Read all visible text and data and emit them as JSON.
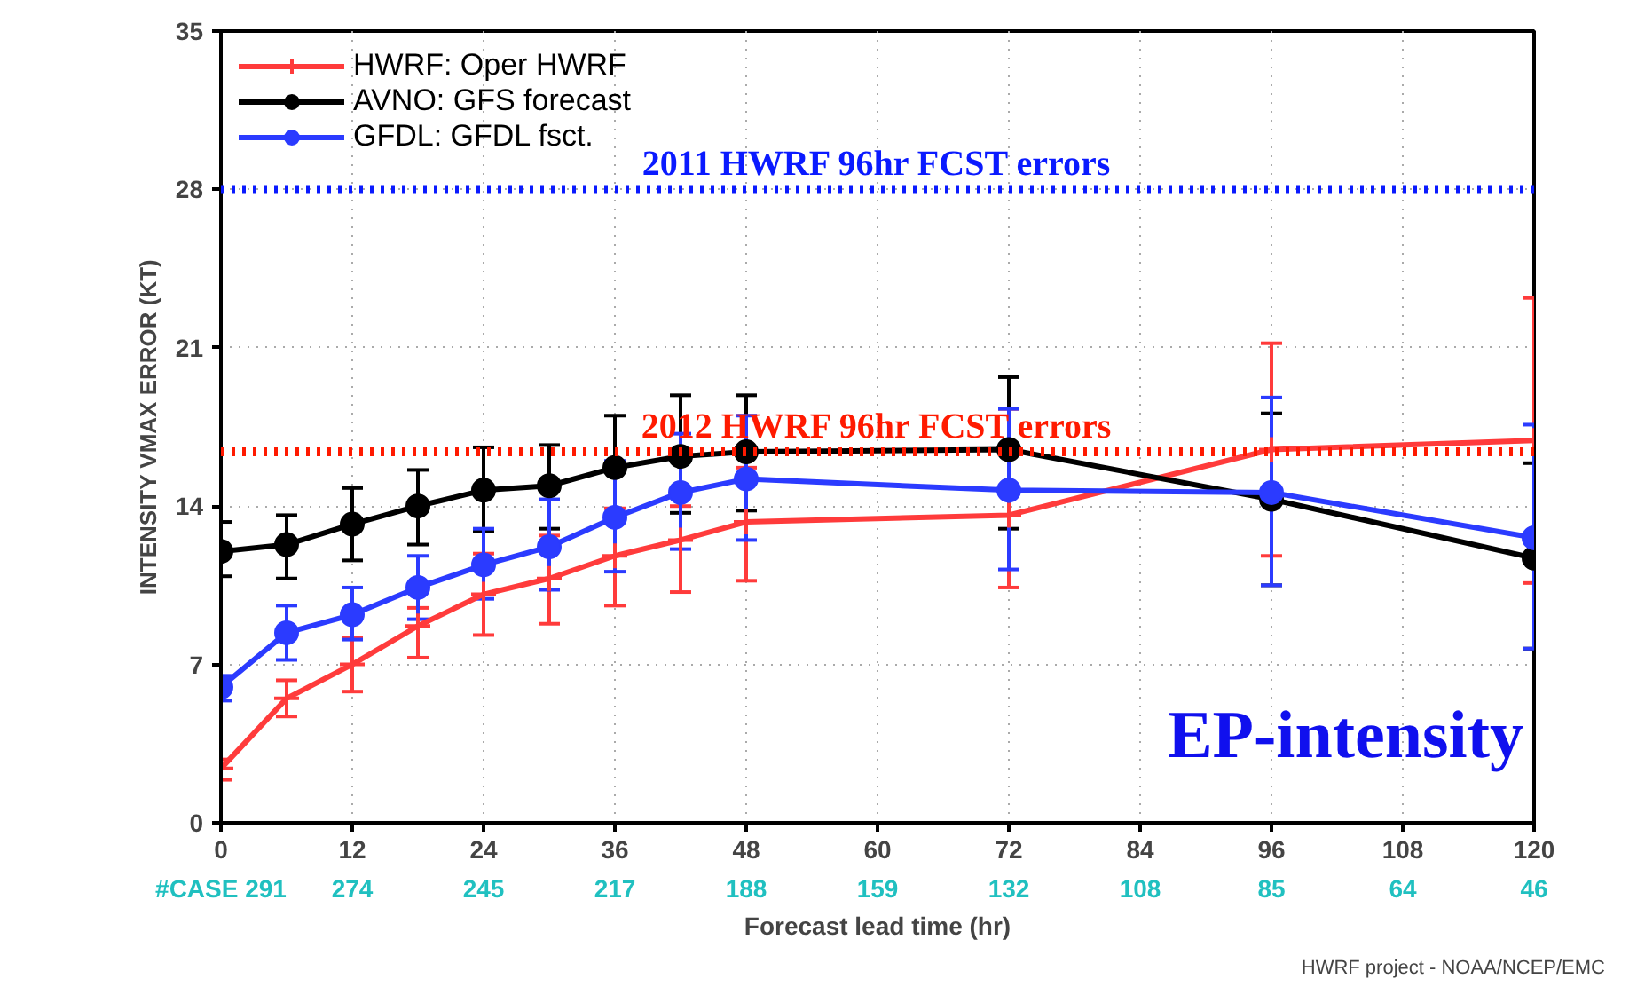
{
  "chart_data": {
    "type": "line",
    "xlabel": "Forecast lead time (hr)",
    "ylabel": "INTENSITY VMAX ERROR (KT)",
    "x": [
      0,
      6,
      12,
      18,
      24,
      30,
      36,
      42,
      48,
      72,
      96,
      120
    ],
    "series": [
      {
        "name": "HWRF: Oper HWRF",
        "color": "#ff3b3b",
        "marker": "cross",
        "values": [
          2.4,
          5.5,
          7.0,
          8.7,
          10.1,
          10.8,
          11.8,
          12.5,
          13.3,
          13.6,
          16.5,
          16.9
        ],
        "errors": [
          [
            1.9,
            2.8
          ],
          [
            4.7,
            6.3
          ],
          [
            5.8,
            8.2
          ],
          [
            7.3,
            9.5
          ],
          [
            8.3,
            11.9
          ],
          [
            8.8,
            12.7
          ],
          [
            9.6,
            13.9
          ],
          [
            10.2,
            14.0
          ],
          [
            10.7,
            15.7
          ],
          [
            10.4,
            18.3
          ],
          [
            11.8,
            21.2
          ],
          [
            10.6,
            23.2
          ]
        ]
      },
      {
        "name": "AVNO: GFS forecast",
        "color": "#000000",
        "marker": "circle",
        "values": [
          12.0,
          12.3,
          13.2,
          14.0,
          14.7,
          14.9,
          15.7,
          16.2,
          16.4,
          16.5,
          14.3,
          11.7
        ],
        "errors": [
          [
            10.9,
            13.3
          ],
          [
            10.8,
            13.6
          ],
          [
            11.6,
            14.8
          ],
          [
            12.3,
            15.6
          ],
          [
            12.9,
            16.6
          ],
          [
            13.0,
            16.7
          ],
          [
            15.7,
            18.0
          ],
          [
            13.7,
            18.9
          ],
          [
            13.8,
            18.9
          ],
          [
            13.0,
            19.7
          ],
          [
            10.5,
            18.1
          ],
          [
            7.7,
            15.9
          ]
        ]
      },
      {
        "name": "GFDL: GFDL fsct.",
        "color": "#2b3bff",
        "marker": "circle",
        "values": [
          6.0,
          8.4,
          9.2,
          10.4,
          11.4,
          12.2,
          13.5,
          14.6,
          15.2,
          14.7,
          14.6,
          12.6
        ],
        "errors": [
          [
            5.4,
            6.5
          ],
          [
            7.2,
            9.6
          ],
          [
            8.1,
            10.4
          ],
          [
            9.0,
            11.8
          ],
          [
            9.9,
            13.0
          ],
          [
            10.3,
            14.3
          ],
          [
            11.1,
            16.0
          ],
          [
            12.1,
            17.2
          ],
          [
            12.5,
            18.0
          ],
          [
            11.2,
            18.3
          ],
          [
            10.5,
            18.8
          ],
          [
            7.7,
            17.6
          ]
        ]
      }
    ],
    "ref_lines": [
      {
        "axis": "y",
        "value": 28,
        "label": "2011 HWRF 96hr FCST errors",
        "color": "#0a1aff",
        "line_style": "dotted"
      },
      {
        "axis": "y",
        "value": 16.4,
        "label": "2012 HWRF 96hr FCST errors",
        "color": "#ff1a00",
        "line_style": "dotted"
      }
    ],
    "annotations": [
      "EP-intensity",
      "HWRF project - NOAA/NCEP/EMC",
      "#CASE",
      "291",
      "274",
      "245",
      "217",
      "188",
      "159",
      "132",
      "108",
      "85",
      "64",
      "46"
    ],
    "xlim": [
      0,
      120
    ],
    "xticks": [
      0,
      12,
      24,
      36,
      48,
      60,
      72,
      84,
      96,
      108,
      120
    ],
    "ylim": [
      0,
      35
    ],
    "yticks": [
      0,
      7,
      14,
      21,
      28,
      35
    ],
    "grid": true,
    "legend": "top left",
    "line_style": "solid"
  }
}
